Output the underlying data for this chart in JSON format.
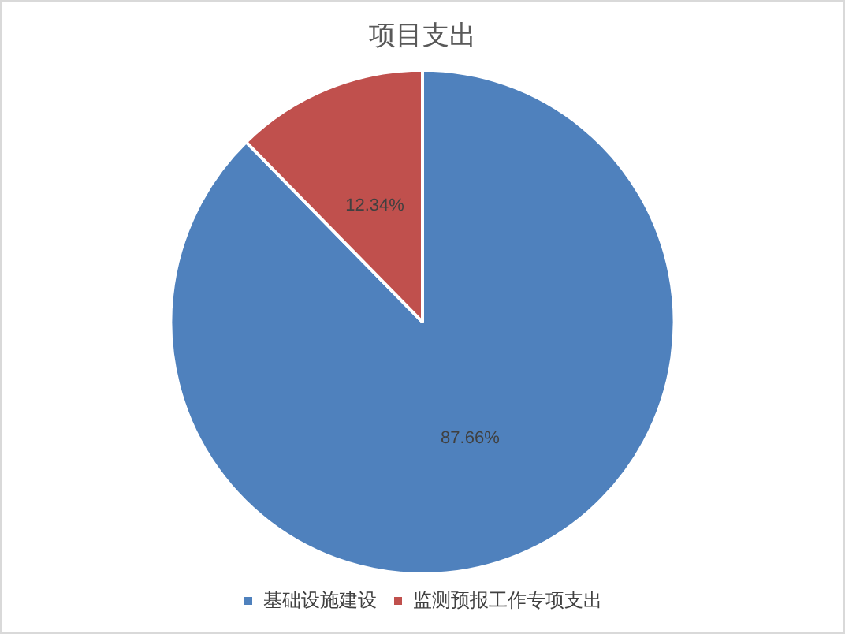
{
  "chart_data": {
    "type": "pie",
    "title": "项目支出",
    "categories": [
      "基础设施建设",
      "监测预报工作专项支出"
    ],
    "values": [
      87.66,
      12.34
    ],
    "value_labels": [
      "87.66%",
      "12.34%"
    ],
    "colors": [
      "#4f81bd",
      "#c0504d"
    ],
    "legend": "bottom"
  }
}
